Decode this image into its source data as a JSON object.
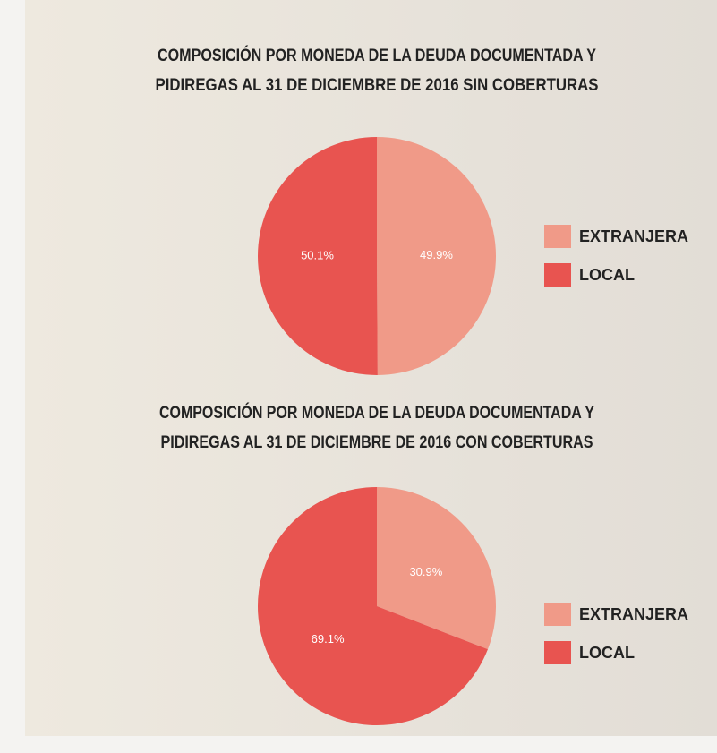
{
  "chart_data": [
    {
      "type": "pie",
      "title": [
        "COMPOSICIÓN POR MONEDA DE LA DEUDA DOCUMENTADA Y",
        "PIDIREGAS AL 31 DE DICIEMBRE DE 2016 SIN COBERTURAS"
      ],
      "categories": [
        "EXTRANJERA",
        "LOCAL"
      ],
      "values": [
        49.9,
        50.1
      ],
      "value_labels": [
        "49.9%",
        "50.1%"
      ],
      "colors": [
        "#f09a88",
        "#e85450"
      ],
      "legend": "right"
    },
    {
      "type": "pie",
      "title": [
        "COMPOSICIÓN POR MONEDA DE LA DEUDA DOCUMENTADA Y",
        "PIDIREGAS AL 31 DE DICIEMBRE DE 2016 CON COBERTURAS"
      ],
      "categories": [
        "EXTRANJERA",
        "LOCAL"
      ],
      "values": [
        30.9,
        69.1
      ],
      "value_labels": [
        "30.9%",
        "69.1%"
      ],
      "colors": [
        "#f09a88",
        "#e85450"
      ],
      "legend": "right"
    }
  ]
}
